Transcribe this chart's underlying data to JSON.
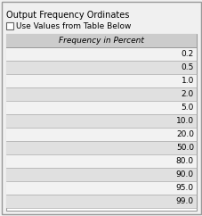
{
  "title": "Output Frequency Ordinates",
  "checkbox_label": "Use Values from Table Below",
  "table_header": "Frequency in Percent",
  "table_values": [
    "0.2",
    "0.5",
    "1.0",
    "2.0",
    "5.0",
    "10.0",
    "20.0",
    "50.0",
    "80.0",
    "90.0",
    "95.0",
    "99.0"
  ],
  "panel_bg": "#f0f0f0",
  "table_header_bg": "#cccccc",
  "border_color": "#999999",
  "row_border_color": "#aaaaaa",
  "text_color": "#000000",
  "font_size": 6.5,
  "header_font_size": 6.5,
  "title_font_size": 7.0
}
